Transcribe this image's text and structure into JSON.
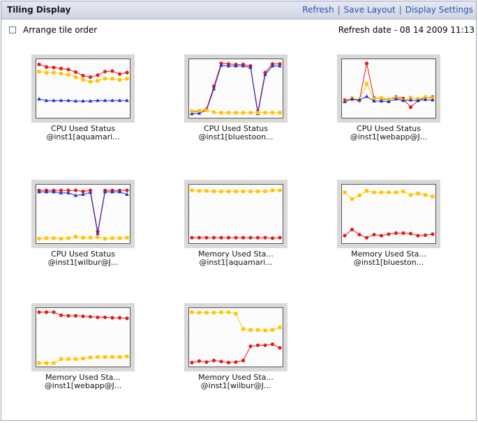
{
  "header": {
    "title": "Tiling Display",
    "links": [
      "Refresh",
      "Save Layout",
      "Display Settings"
    ]
  },
  "options": {
    "arrange_label": "Arrange tile order"
  },
  "refresh": {
    "label": "Refresh date",
    "value": "08 14 2009 11:13"
  },
  "colors": {
    "red": "#e31b1b",
    "yellow": "#ffc400",
    "blue": "#1a2fd6"
  },
  "tiles": [
    {
      "line1": "CPU Used Status",
      "line2": "@inst1[aquamari...",
      "series": [
        {
          "color": "red",
          "marker": "circle",
          "values": [
            98,
            93,
            92,
            90,
            88,
            83,
            76,
            73,
            77,
            84,
            85,
            79,
            82
          ]
        },
        {
          "color": "yellow",
          "marker": "square",
          "values": [
            84,
            82,
            82,
            80,
            78,
            73,
            68,
            64,
            66,
            70,
            70,
            68,
            70
          ]
        },
        {
          "color": "blue",
          "marker": "triangle",
          "values": [
            30,
            27,
            27,
            27,
            27,
            26,
            26,
            26,
            27,
            27,
            27,
            27,
            27
          ]
        }
      ]
    },
    {
      "line1": "CPU Used Status",
      "line2": "@inst1[bluestoon...",
      "series": [
        {
          "color": "red",
          "marker": "circle",
          "values": [
            5,
            6,
            10,
            55,
            100,
            99,
            98,
            98,
            95,
            5,
            82,
            99,
            99
          ]
        },
        {
          "color": "blue",
          "marker": "triangle",
          "values": [
            1,
            2,
            8,
            50,
            96,
            95,
            95,
            95,
            92,
            1,
            78,
            95,
            95
          ]
        },
        {
          "color": "yellow",
          "marker": "square",
          "values": [
            6,
            7,
            8,
            4,
            3,
            3,
            3,
            3,
            3,
            3,
            3,
            3,
            3
          ]
        }
      ]
    },
    {
      "line1": "CPU Used Status",
      "line2": "@inst1[webapp@J...",
      "series": [
        {
          "color": "red",
          "marker": "circle",
          "values": [
            28,
            30,
            27,
            100,
            32,
            30,
            29,
            34,
            31,
            14,
            27,
            33,
            34
          ]
        },
        {
          "color": "yellow",
          "marker": "square",
          "values": [
            25,
            32,
            28,
            60,
            30,
            32,
            29,
            32,
            28,
            33,
            30,
            34,
            32
          ]
        },
        {
          "color": "blue",
          "marker": "triangle",
          "values": [
            25,
            30,
            28,
            35,
            26,
            26,
            25,
            30,
            27,
            28,
            27,
            29,
            28
          ]
        }
      ]
    },
    {
      "line1": "CPU Used Status",
      "line2": "@inst1[wilbur@J...",
      "series": [
        {
          "color": "red",
          "marker": "circle",
          "values": [
            97,
            97,
            97,
            97,
            97,
            97,
            95,
            97,
            16,
            97,
            97,
            97,
            97
          ]
        },
        {
          "color": "blue",
          "marker": "triangle",
          "values": [
            94,
            94,
            94,
            92,
            92,
            87,
            89,
            93,
            12,
            94,
            94,
            94,
            89
          ]
        },
        {
          "color": "yellow",
          "marker": "square",
          "values": [
            2,
            3,
            3,
            2,
            3,
            6,
            4,
            4,
            5,
            2,
            3,
            3,
            4
          ]
        }
      ]
    },
    {
      "line1": "Memory Used Sta...",
      "line2": "@inst1[aquamari...",
      "series": [
        {
          "color": "yellow",
          "marker": "square",
          "values": [
            97,
            96,
            96,
            95,
            95,
            95,
            95,
            95,
            95,
            95,
            95,
            97,
            97
          ]
        },
        {
          "color": "red",
          "marker": "circle",
          "values": [
            4,
            4,
            4,
            4,
            4,
            4,
            4,
            4,
            4,
            4,
            4,
            3,
            4
          ]
        }
      ]
    },
    {
      "line1": "Memory Used Sta...",
      "line2": "@inst1[blueston...",
      "series": [
        {
          "color": "yellow",
          "marker": "square",
          "values": [
            93,
            80,
            87,
            96,
            93,
            93,
            93,
            93,
            95,
            88,
            91,
            88,
            85
          ]
        },
        {
          "color": "red",
          "marker": "circle",
          "values": [
            8,
            20,
            10,
            4,
            10,
            8,
            11,
            13,
            13,
            12,
            8,
            9,
            11
          ]
        }
      ]
    },
    {
      "line1": "Memory Used Sta...",
      "line2": "@inst1[webapp@J...",
      "series": [
        {
          "color": "red",
          "marker": "circle",
          "values": [
            100,
            100,
            100,
            94,
            93,
            93,
            92,
            91,
            90,
            90,
            89,
            89,
            88
          ]
        },
        {
          "color": "yellow",
          "marker": "square",
          "values": [
            0,
            0,
            0,
            8,
            8,
            8,
            9,
            11,
            12,
            12,
            12,
            12,
            13
          ]
        }
      ]
    },
    {
      "line1": "Memory Used Sta...",
      "line2": "@inst1[wilbur@J...",
      "series": [
        {
          "color": "yellow",
          "marker": "square",
          "values": [
            100,
            99,
            99,
            99,
            100,
            100,
            97,
            67,
            65,
            65,
            64,
            65,
            70
          ]
        },
        {
          "color": "red",
          "marker": "circle",
          "values": [
            1,
            4,
            2,
            5,
            3,
            1,
            2,
            5,
            33,
            35,
            35,
            37,
            30
          ]
        }
      ]
    }
  ]
}
